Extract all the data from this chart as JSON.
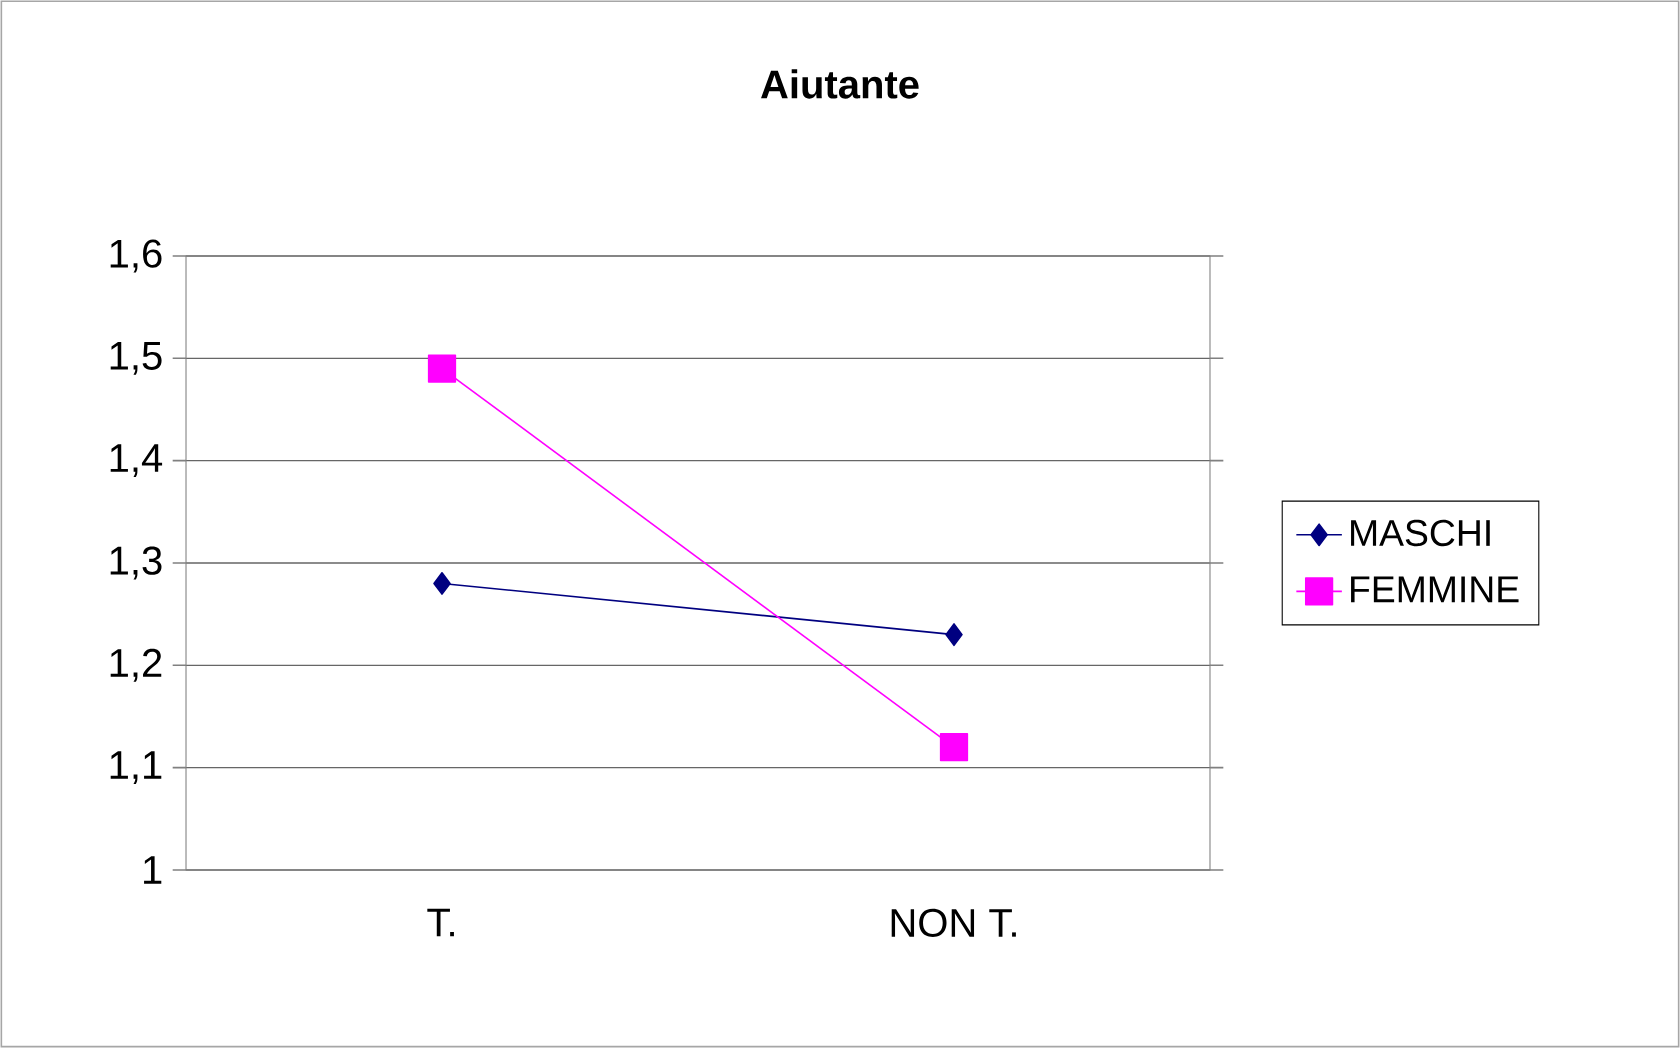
{
  "chart_data": {
    "type": "line",
    "title": "Aiutante",
    "categories": [
      "T.",
      "NON T."
    ],
    "series": [
      {
        "name": "MASCHI",
        "color": "#000080",
        "marker": "diamond",
        "values": [
          1.28,
          1.23
        ]
      },
      {
        "name": "FEMMINE",
        "color": "#ff00ff",
        "marker": "square",
        "values": [
          1.49,
          1.12
        ]
      }
    ],
    "ylim": [
      1,
      1.6
    ],
    "yticks": [
      1,
      {
        "value": 1.1,
        "label": "1,1"
      },
      {
        "value": 1.2,
        "label": "1,2"
      },
      {
        "value": 1.3,
        "label": "1,3"
      },
      {
        "value": 1.4,
        "label": "1,4"
      },
      {
        "value": 1.5,
        "label": "1,5"
      },
      {
        "value": 1.6,
        "label": "1,6"
      }
    ],
    "grid": "y",
    "legend": "right",
    "line_style": "solid"
  }
}
